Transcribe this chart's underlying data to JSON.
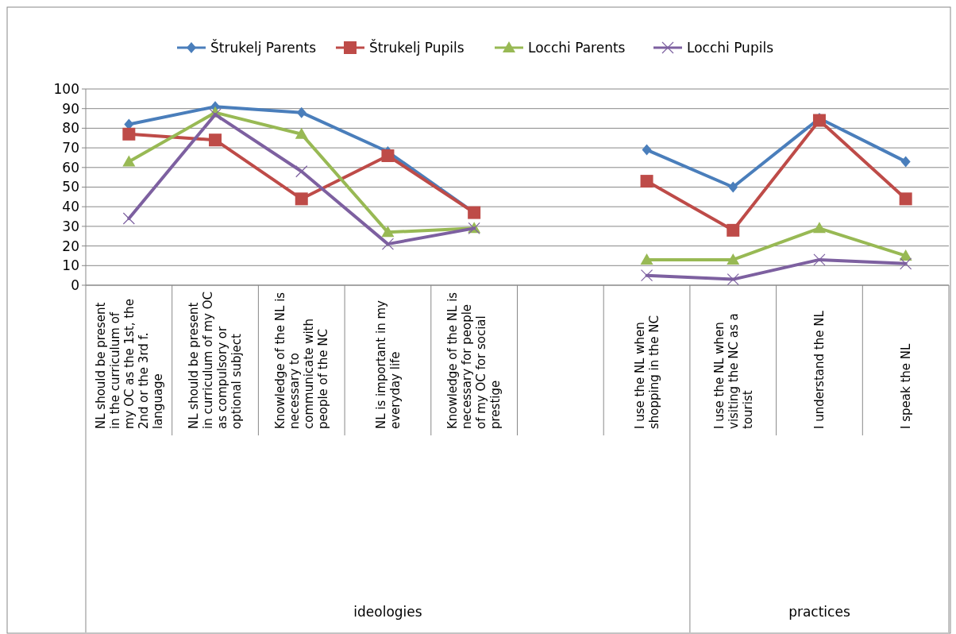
{
  "chart_data": {
    "type": "line",
    "categories": [
      "NL should be present in the curriculum of my OC as the 1st, the 2nd or the 3rd f. language",
      "NL should be present in curriculum of my OC as compulsory or optional subject",
      "Knowledge of the NL is necessary to communicate with people of the NC",
      "NL is important in my everyday life",
      "Knowledge of the NL is necessary for people of my OC for social prestige",
      null,
      "I use the NL when shopping in the NC",
      "I use the NL when visiting the NC as a tourist",
      "I understand the NL",
      "I speak the NL"
    ],
    "series": [
      {
        "name": "Štrukelj Parents",
        "color": "#4a7ebb",
        "marker": "diamond",
        "values": [
          82,
          91,
          88,
          68,
          37,
          null,
          69,
          50,
          85,
          63
        ]
      },
      {
        "name": "Štrukelj Pupils",
        "color": "#be4b48",
        "marker": "square",
        "values": [
          77,
          74,
          44,
          66,
          37,
          null,
          53,
          28,
          84,
          44
        ]
      },
      {
        "name": "Locchi Parents",
        "color": "#98b954",
        "marker": "triangle",
        "values": [
          63,
          88,
          77,
          27,
          29,
          null,
          13,
          13,
          29,
          15
        ]
      },
      {
        "name": "Locchi Pupils",
        "color": "#7d60a0",
        "marker": "cross",
        "values": [
          34,
          87,
          58,
          21,
          29,
          null,
          5,
          3,
          13,
          11
        ]
      }
    ],
    "ylim": [
      0,
      100
    ],
    "yticks": [
      0,
      10,
      20,
      30,
      40,
      50,
      60,
      70,
      80,
      90,
      100
    ],
    "grid": "y",
    "legend": "top",
    "annotations": [
      "ideologies",
      "practices"
    ]
  }
}
